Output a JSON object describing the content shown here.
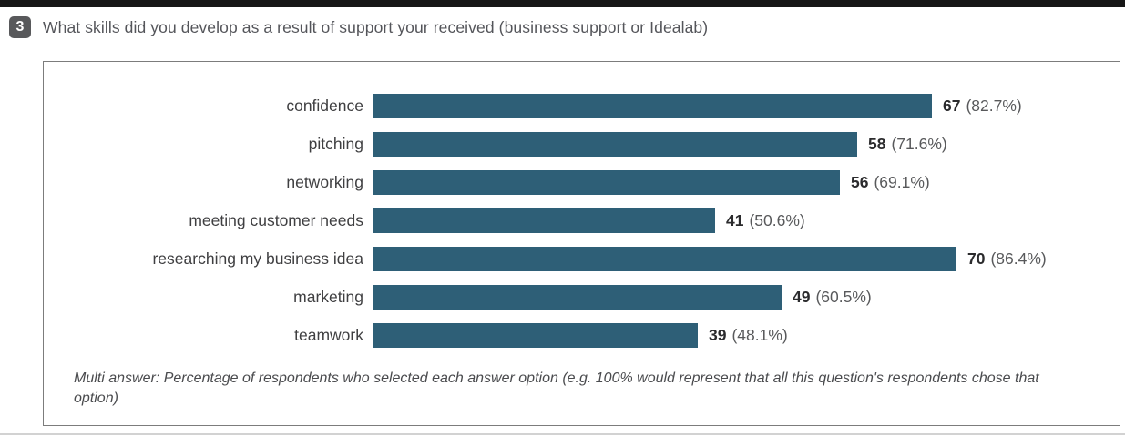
{
  "page": {
    "question_number": "3",
    "question_title": "What skills did you develop as a result of support your received (business support or Idealab)"
  },
  "chart_data": {
    "type": "bar",
    "orientation": "horizontal",
    "categories": [
      "confidence",
      "pitching",
      "networking",
      "meeting customer needs",
      "researching my business idea",
      "marketing",
      "teamwork"
    ],
    "values": [
      67,
      58,
      56,
      41,
      70,
      49,
      39
    ],
    "percentages": [
      82.7,
      71.6,
      69.1,
      50.6,
      86.4,
      60.5,
      48.1
    ],
    "xlim": [
      0,
      100
    ],
    "grid": false,
    "legend": "none",
    "bar_color": "#2E5F77",
    "value_label_format": "{value} ({pct}%)",
    "footnote": "Multi answer: Percentage of respondents who selected each answer option (e.g. 100% would represent that all this question's respondents chose that option)"
  },
  "colors": {
    "bar": "#2E5F77",
    "badge_background": "#58595b",
    "title_text": "#54555a",
    "card_border": "#7c7c7c",
    "top_bar": "#161616"
  }
}
